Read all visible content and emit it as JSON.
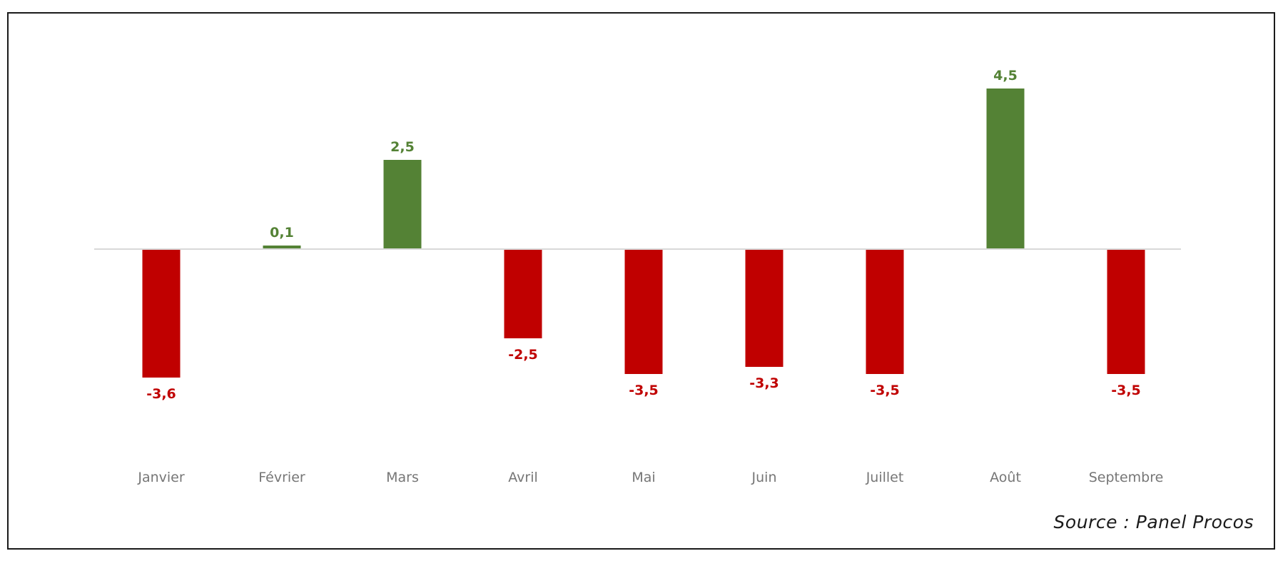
{
  "source_note": "Source : Panel Procos",
  "colors": {
    "positive": "#548235",
    "negative": "#C00000",
    "axis": "#D9D9D9",
    "tick_label": "#767676"
  },
  "chart_data": {
    "type": "bar",
    "categories": [
      "Janvier",
      "Février",
      "Mars",
      "Avril",
      "Mai",
      "Juin",
      "Juillet",
      "Août",
      "Septembre"
    ],
    "values": [
      -3.6,
      0.1,
      2.5,
      -2.5,
      -3.5,
      -3.3,
      -3.5,
      4.5,
      -3.5
    ],
    "data_labels": [
      "-3,6",
      "0,1",
      "2,5",
      "-2,5",
      "-3,5",
      "-3,3",
      "-3,5",
      "4,5",
      "-3,5"
    ],
    "title": "",
    "xlabel": "",
    "ylabel": "",
    "ylim": [
      -3.6,
      4.5
    ],
    "grid": false,
    "legend": false
  }
}
